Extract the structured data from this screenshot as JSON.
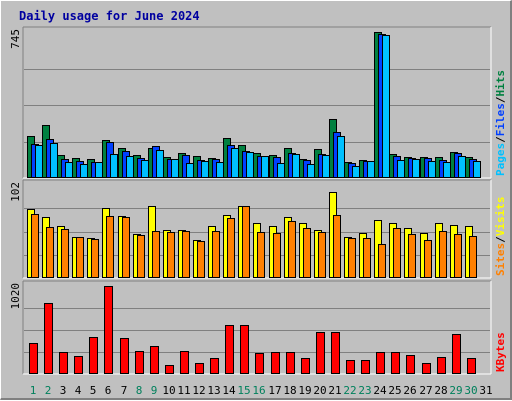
{
  "chart_data": {
    "type": "bar",
    "title": "Daily usage for June 2024",
    "categories": [
      "1",
      "2",
      "3",
      "4",
      "5",
      "6",
      "7",
      "8",
      "9",
      "10",
      "11",
      "12",
      "13",
      "14",
      "15",
      "16",
      "17",
      "18",
      "19",
      "20",
      "21",
      "22",
      "23",
      "24",
      "25",
      "26",
      "27",
      "28",
      "29",
      "30",
      "31"
    ],
    "weekend_days": [
      "1",
      "2",
      "8",
      "9",
      "15",
      "16",
      "22",
      "23",
      "29",
      "30"
    ],
    "panels": [
      {
        "name": "hits-files-pages",
        "ymax_label": "745",
        "ymax": 745,
        "legend": [
          "Pages",
          "/",
          "Files",
          "/",
          "Hits"
        ],
        "legend_colors": [
          "#00c0ff",
          "#000000",
          "#0040ff",
          "#000000",
          "#008040"
        ],
        "series": [
          {
            "name": "Hits",
            "color": "#008040",
            "values": [
              215,
              268,
              115,
              103,
              99,
              195,
              153,
              117,
              153,
              108,
              128,
              111,
              104,
              205,
              170,
              127,
              119,
              152,
              98,
              147,
              303,
              82,
              94,
              745,
              123,
              109,
              105,
              106,
              132,
              106,
              0
            ]
          },
          {
            "name": "Files",
            "color": "#0040ff",
            "values": [
              172,
              198,
              99,
              85,
              82,
              185,
              140,
              101,
              163,
              98,
              115,
              93,
              97,
              166,
              138,
              114,
              108,
              129,
              90,
              124,
              236,
              79,
              87,
              736,
              112,
              104,
              101,
              93,
              126,
              97,
              0
            ]
          },
          {
            "name": "Pages",
            "color": "#00c0ff",
            "values": [
              169,
              180,
              80,
              72,
              82,
              124,
              110,
              90,
              142,
              96,
              78,
              88,
              82,
              155,
              133,
              114,
              76,
              122,
              72,
              117,
              215,
              60,
              86,
              729,
              92,
              98,
              89,
              80,
              113,
              87,
              0
            ]
          }
        ]
      },
      {
        "name": "visits-sites",
        "ymax_label": "102",
        "ymax": 102,
        "legend": [
          "Sites",
          "/",
          "Visits"
        ],
        "legend_colors": [
          "#ff8000",
          "#000000",
          "#ffff00"
        ],
        "series": [
          {
            "name": "Visits",
            "color": "#ffff00",
            "values": [
              76,
              67,
              57,
              45,
              44,
              77,
              68,
              48,
              79,
              53,
              53,
              42,
              57,
              69,
              79,
              60,
              57,
              67,
              60,
              53,
              94,
              45,
              49,
              64,
              60,
              55,
              49,
              60,
              58,
              57,
              0
            ]
          },
          {
            "name": "Sites",
            "color": "#ff8000",
            "values": [
              70,
              56,
              54,
              45,
              43,
              68,
              67,
              47,
              51,
              50,
              52,
              41,
              52,
              66,
              79,
              50,
              49,
              62,
              55,
              50,
              69,
              44,
              44,
              37,
              55,
              48,
              42,
              51,
              48,
              46,
              0
            ]
          }
        ]
      },
      {
        "name": "kbytes",
        "ymax_label": "1020",
        "ymax": 1020,
        "legend": [
          "KBytes"
        ],
        "legend_colors": [
          "#ff0000"
        ],
        "series": [
          {
            "name": "KBytes",
            "color": "#ff0000",
            "values": [
              357,
              818,
              254,
              209,
              429,
              1020,
              422,
              270,
              325,
              104,
              271,
              122,
              188,
              567,
              573,
              244,
              260,
              250,
              181,
              486,
              486,
              162,
              162,
              260,
              260,
              225,
              126,
              202,
              458,
              188,
              0
            ]
          }
        ]
      }
    ]
  }
}
